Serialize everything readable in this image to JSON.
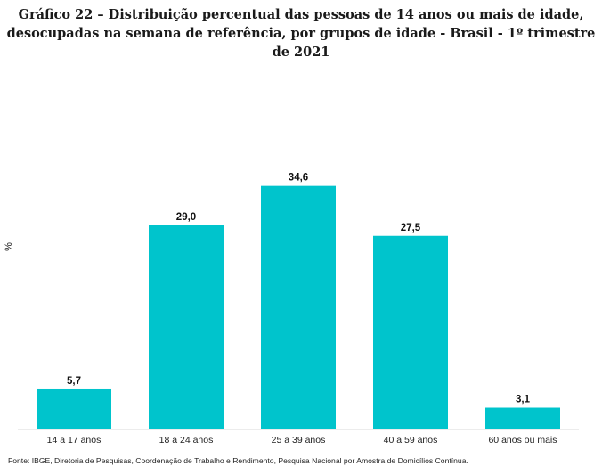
{
  "chart_data": {
    "type": "bar",
    "title_lines": [
      "Gráfico 22 – Distribuição percentual das pessoas de 14 anos ou mais de idade,",
      "desocupadas na semana de referência, por grupos de idade - Brasil - 1º trimestre de 2021"
    ],
    "categories": [
      "14 a 17 anos",
      "18 a 24 anos",
      "25 a 39 anos",
      "40 a 59 anos",
      "60 anos ou mais"
    ],
    "values": [
      5.7,
      29.0,
      34.6,
      27.5,
      3.1
    ],
    "data_labels": [
      "5,7",
      "29,0",
      "34,6",
      "27,5",
      "3,1"
    ],
    "ylabel": "%",
    "xlabel": "",
    "ylim": [
      0,
      40
    ],
    "grid": false,
    "bar_color": "#00c4cc",
    "source": "Fonte: IBGE, Diretoria de Pesquisas, Coordenação de Trabalho e Rendimento, Pesquisa Nacional por Amostra de Domicílios Contínua."
  }
}
